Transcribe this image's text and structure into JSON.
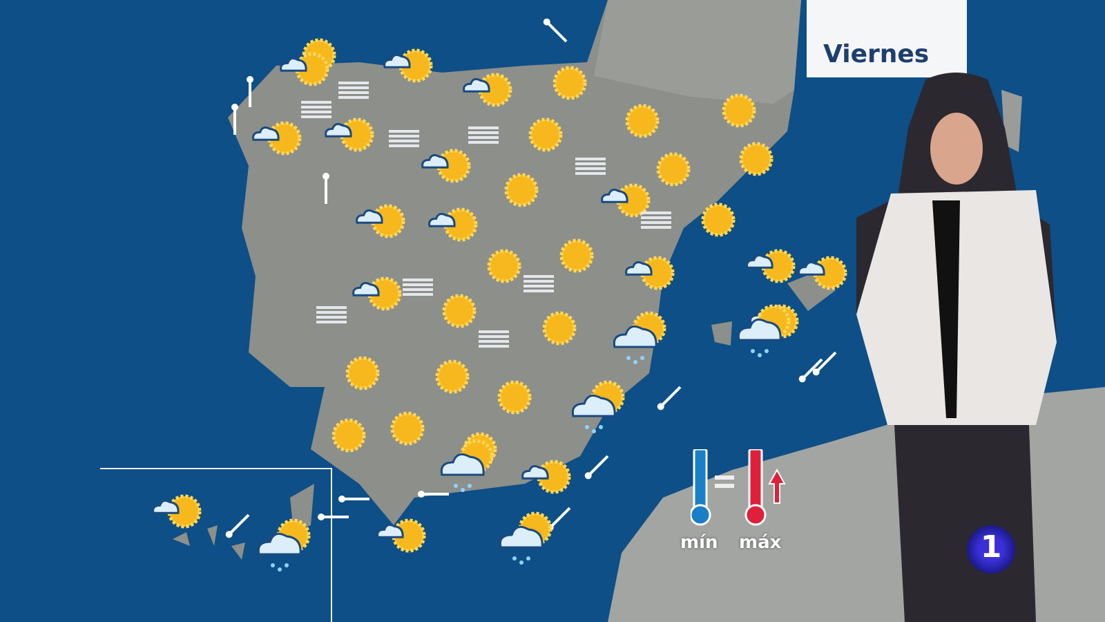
{
  "broadcast": {
    "day_label": "Viernes",
    "channel_logo_text": "1"
  },
  "legend": {
    "min_label": "mín",
    "max_label": "máx",
    "min_trend": "equal-icon",
    "max_trend": "arrow-up-icon",
    "colors": {
      "min": "#1a7fc6",
      "max": "#e0203a"
    }
  },
  "map": {
    "colors": {
      "sea": "#0d4f86",
      "land": "#8c8f8a",
      "sun": "#f6b81c"
    },
    "icons": [
      "sun",
      "cloud-sun",
      "cloud-sun",
      "cloud-sun",
      "sun",
      "sun",
      "sun",
      "fog",
      "fog",
      "cloud-sun",
      "cloud-sun",
      "sun",
      "sun",
      "fog",
      "fog",
      "cloud-sun",
      "sun",
      "fog",
      "sun",
      "sun",
      "cloud-sun",
      "cloud-sun",
      "cloud-sun",
      "sun",
      "cloud-sun",
      "sun",
      "fog",
      "cloud-sun",
      "fog",
      "sun",
      "fog",
      "sun",
      "sun",
      "fog",
      "rain-cloud",
      "sun",
      "sun",
      "sun",
      "rain-cloud",
      "sun",
      "sun",
      "rain-cloud",
      "cloud-sun",
      "cloud-sun",
      "rain-cloud",
      "cloud-sun",
      "rain-cloud",
      "cloud-sun",
      "cloud-sun",
      "cloud-sun",
      "rain-cloud",
      "fog"
    ],
    "wind_arrows": [
      "up",
      "up",
      "up",
      "up-left",
      "down-left",
      "down-left",
      "down-left",
      "down-left",
      "down-left",
      "down-left",
      "left",
      "left",
      "left"
    ]
  }
}
